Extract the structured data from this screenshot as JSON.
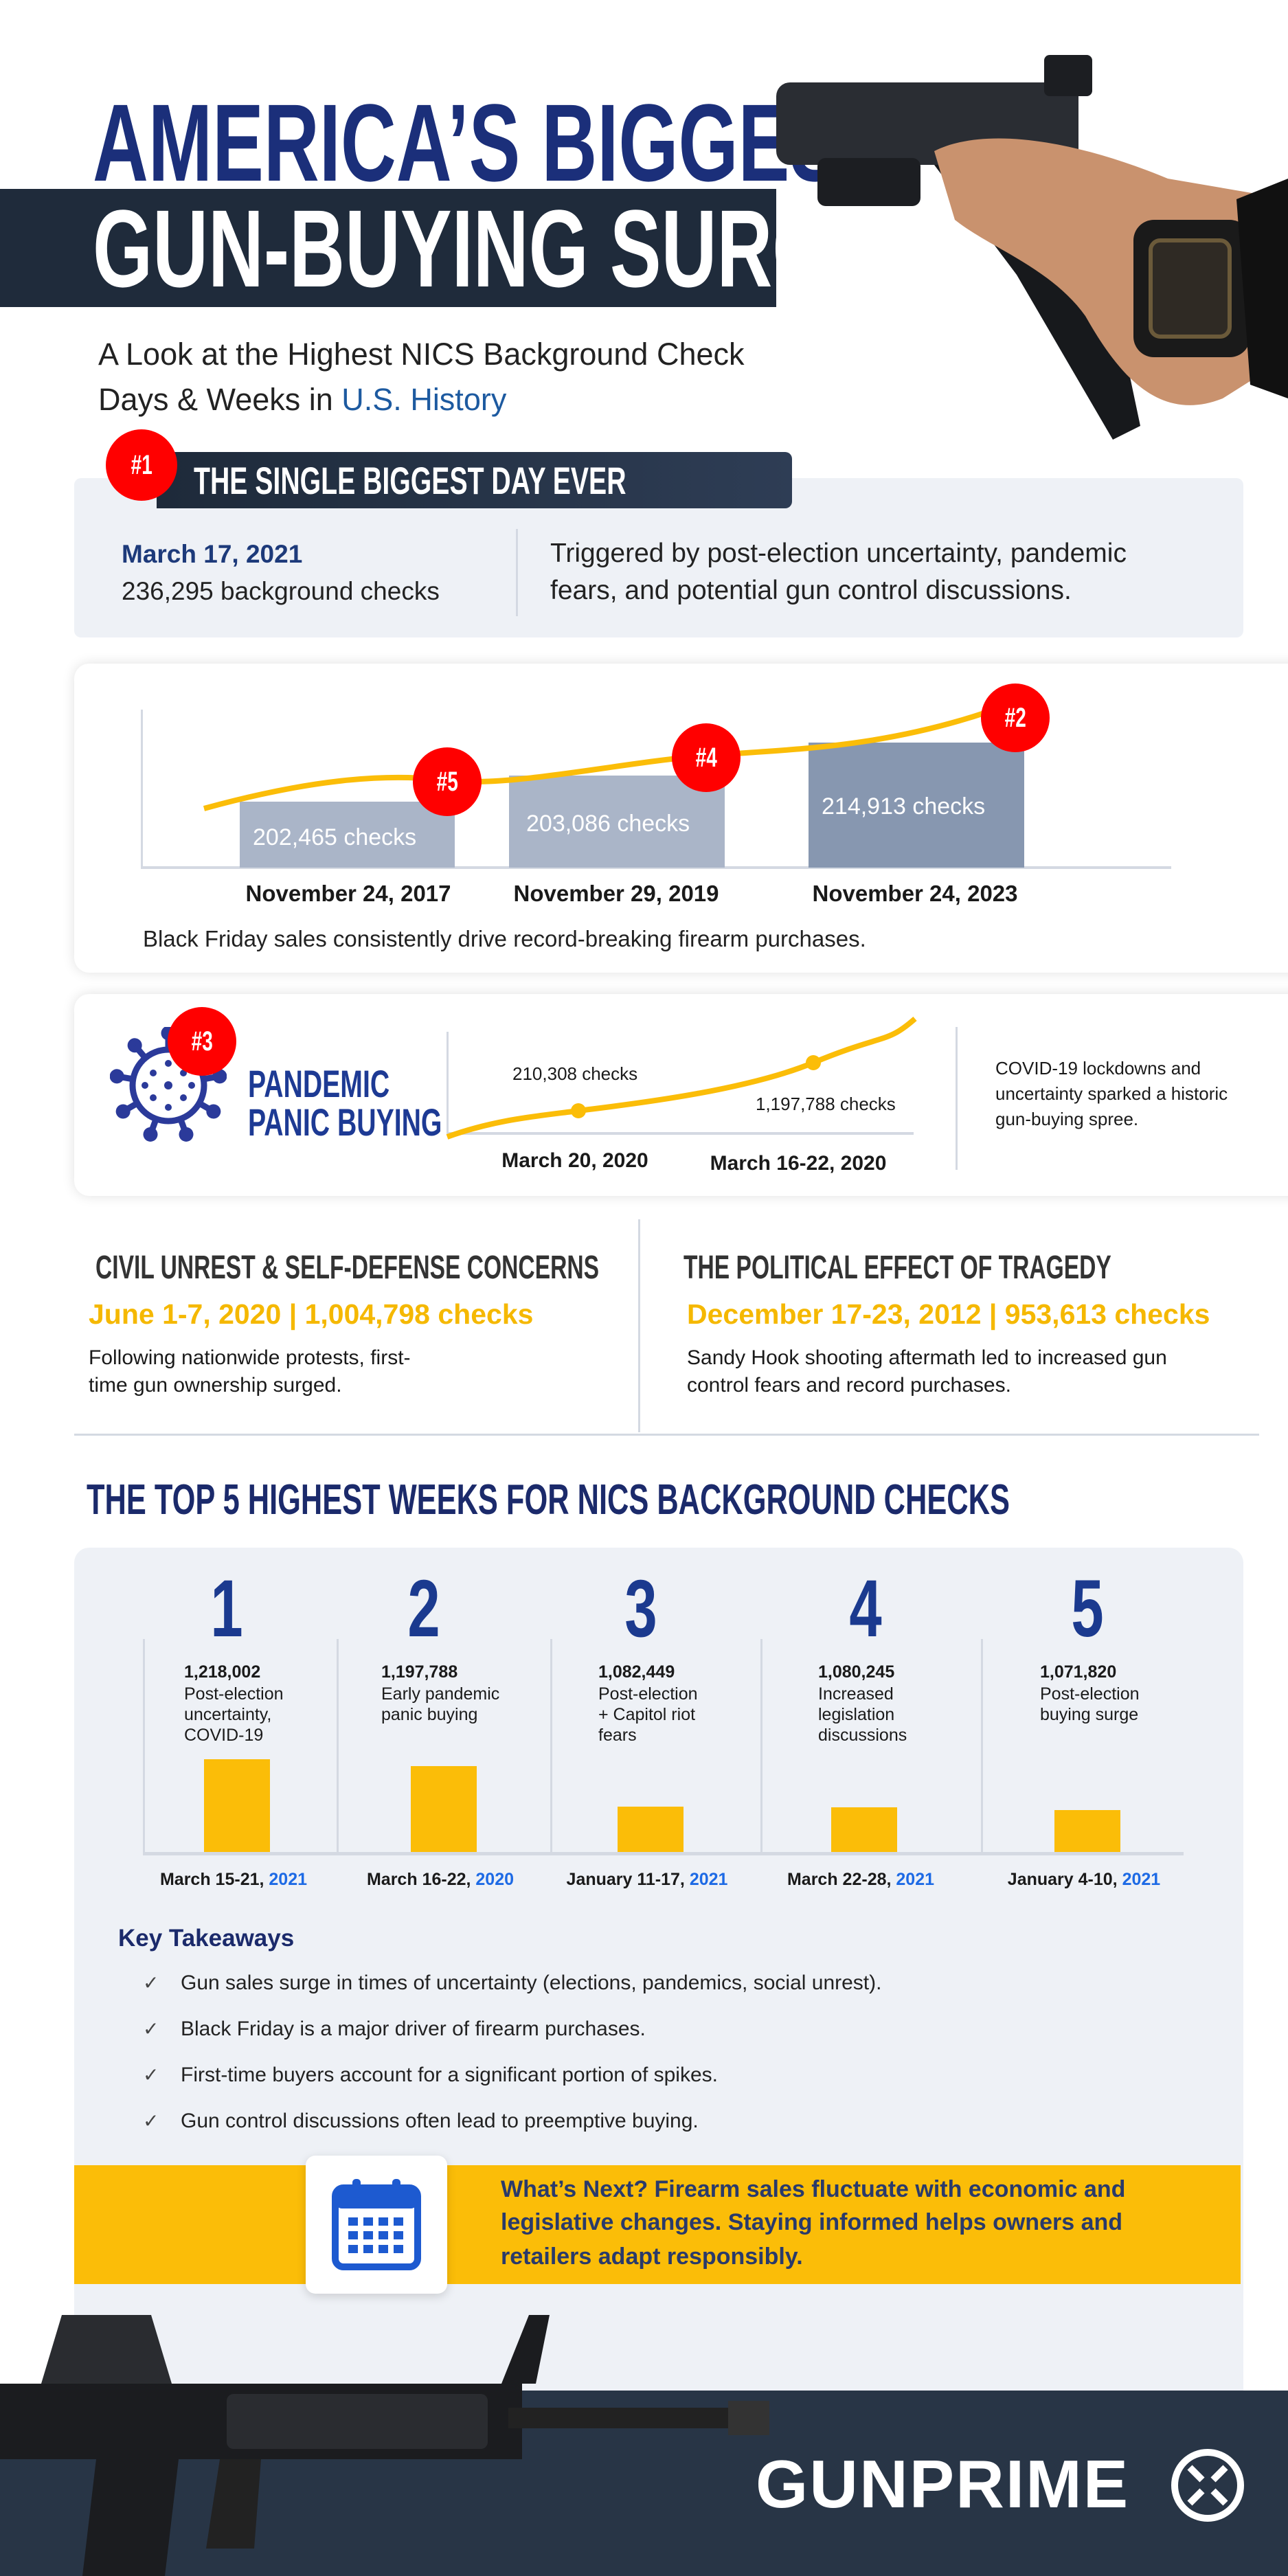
{
  "header": {
    "title_line1": "AMERICA’S BIGGEST",
    "title_line2": "GUN-BUYING SURGES",
    "subtitle_line1": "A Look at the Highest NICS Background Check",
    "subtitle_line2_prefix": "Days & Weeks in ",
    "subtitle_line2_highlight": "U.S. History"
  },
  "biggest_day": {
    "badge": "#1",
    "heading": "THE SINGLE BIGGEST DAY EVER",
    "date": "March 17, 2021",
    "checks": "236,295 background checks",
    "description_line1": "Triggered by post-election uncertainty, pandemic",
    "description_line2": "fears, and potential gun control discussions."
  },
  "black_friday": {
    "bars": [
      {
        "badge": "#5",
        "label": "202,465  checks",
        "date": "November 24, 2017",
        "value": 202465
      },
      {
        "badge": "#4",
        "label": "203,086 checks",
        "date": "November 29, 2019",
        "value": 203086
      },
      {
        "badge": "#2",
        "label": "214,913 checks",
        "date": "November 24, 2023",
        "value": 214913
      }
    ],
    "caption": "Black Friday sales consistently drive record-breaking firearm purchases."
  },
  "pandemic": {
    "badge": "#3",
    "title_line1": "PANDEMIC",
    "title_line2": "PANIC BUYING",
    "point1_label": "210,308 checks",
    "point2_label": "1,197,788 checks",
    "date1": "March 20, 2020",
    "date2": "March 16-22, 2020",
    "desc_line1": "COVID-19 lockdowns and",
    "desc_line2": "uncertainty sparked a historic",
    "desc_line3": "gun-buying spree."
  },
  "civil": {
    "heading": "CIVIL UNREST & SELF-DEFENSE CONCERNS",
    "stat": "June 1-7, 2020 | 1,004,798 checks",
    "text_line1": "Following nationwide protests, first-",
    "text_line2": "time gun ownership surged."
  },
  "political": {
    "heading": "THE POLITICAL EFFECT OF TRAGEDY",
    "stat": "December 17-23, 2012 | 953,613 checks",
    "text_line1": "Sandy Hook shooting aftermath led to increased gun",
    "text_line2": "control fears and record purchases."
  },
  "top5": {
    "heading": "THE TOP 5 HIGHEST WEEKS FOR NICS BACKGROUND CHECKS"
  },
  "chart_data": {
    "type": "bar",
    "categories": [
      "March 15-21, 2021",
      "March 16-22, 2020",
      "January 11-17, 2021",
      "March 22-28, 2021",
      "January 4-10, 2021"
    ],
    "values": [
      1218002,
      1197788,
      1082449,
      1080245,
      1071820
    ],
    "items": [
      {
        "rank": "1",
        "value": "1,218,002",
        "desc": [
          "Post-election",
          "uncertainty,",
          "COVID-19"
        ],
        "date": "March 15-21, ",
        "year": "2021"
      },
      {
        "rank": "2",
        "value": "1,197,788",
        "desc": [
          "Early pandemic",
          "panic buying"
        ],
        "date": "March 16-22, ",
        "year": "2020"
      },
      {
        "rank": "3",
        "value": "1,082,449",
        "desc": [
          "Post-election",
          "+ Capitol riot",
          "fears"
        ],
        "date": "January 11-17, ",
        "year": "2021"
      },
      {
        "rank": "4",
        "value": "1,080,245",
        "desc": [
          "Increased",
          "legislation",
          "discussions"
        ],
        "date": "March 22-28, ",
        "year": "2021"
      },
      {
        "rank": "5",
        "value": "1,071,820",
        "desc": [
          "Post-election",
          "buying surge"
        ],
        "date": "January 4-10, ",
        "year": "2021"
      }
    ],
    "bar_color": "#fbbd08"
  },
  "takeaways": {
    "heading": "Key Takeaways",
    "items": [
      "Gun sales surge in times of uncertainty (elections, pandemics, social unrest).",
      "Black Friday is a major driver of firearm purchases.",
      "First-time buyers account for a significant portion of spikes.",
      "Gun control discussions often lead to preemptive buying."
    ]
  },
  "next": {
    "line1": "What’s Next? Firearm sales fluctuate with economic and",
    "line2": "legislative changes. Staying informed helps owners and",
    "line3": "retailers adapt responsibly."
  },
  "footer": {
    "logo": "GUNPRIME"
  },
  "colors": {
    "navy": "#1b2f7a",
    "accent_yellow": "#fbbd08",
    "badge_red": "#ff0000",
    "dark_band": "#1f2b3b",
    "panel": "#eef1f6"
  }
}
